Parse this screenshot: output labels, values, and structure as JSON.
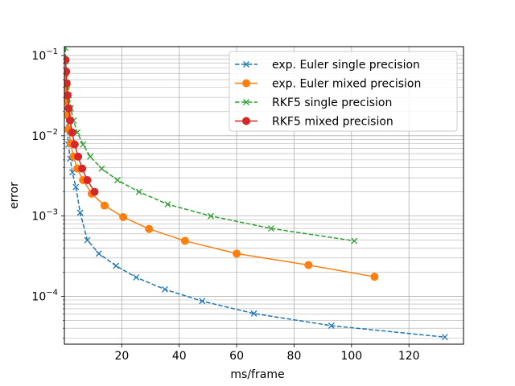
{
  "chart_data": {
    "type": "line",
    "title": "",
    "xlabel": "ms/frame",
    "ylabel": "error",
    "xscale": "linear",
    "yscale": "log",
    "xlim": [
      0,
      139
    ],
    "ylim": [
      2.53e-05,
      0.129
    ],
    "grid": true,
    "grid_minor_y": true,
    "legend_location": "upper right",
    "x_ticks": [
      20,
      40,
      60,
      80,
      100,
      120
    ],
    "x_tick_labels": [
      "20",
      "40",
      "60",
      "80",
      "100",
      "120"
    ],
    "y_ticks": [
      0.0001,
      0.001,
      0.01,
      0.1
    ],
    "y_tick_labels_base": [
      "10",
      "10",
      "10",
      "10"
    ],
    "y_tick_labels_exp": [
      "−4",
      "−3",
      "−2",
      "−1"
    ],
    "series": [
      {
        "name": "exp. Euler single precision",
        "color": "#1f77b4",
        "linestyle": "dashed",
        "marker": "x",
        "x": [
          0.2,
          0.3,
          0.5,
          0.7,
          1.0,
          1.4,
          2.0,
          2.8,
          4.0,
          5.5,
          8.0,
          12.0,
          18.0,
          25.0,
          35.0,
          48.0,
          66.0,
          93.0,
          132.5
        ],
        "y": [
          0.06,
          0.04,
          0.027,
          0.018,
          0.012,
          0.0078,
          0.0052,
          0.0035,
          0.0023,
          0.0011,
          0.0005,
          0.00034,
          0.00024,
          0.000172,
          0.000122,
          8.7e-05,
          6.1e-05,
          4.3e-05,
          3.1e-05
        ]
      },
      {
        "name": "exp. Euler mixed precision",
        "color": "#ff7f0e",
        "linestyle": "solid",
        "marker": "o",
        "x": [
          0.3,
          0.5,
          0.7,
          1.0,
          1.5,
          2.2,
          3.2,
          4.5,
          6.5,
          9.5,
          14.0,
          20.5,
          29.5,
          42.0,
          60.0,
          85.0,
          108.0
        ],
        "y": [
          0.06,
          0.04,
          0.027,
          0.018,
          0.012,
          0.008,
          0.0055,
          0.0039,
          0.0028,
          0.0019,
          0.00135,
          0.00097,
          0.00069,
          0.00049,
          0.00034,
          0.000245,
          0.000175
        ]
      },
      {
        "name": "RKF5 single precision",
        "color": "#2ca02c",
        "linestyle": "dashed",
        "marker": "x",
        "x": [
          0.3,
          0.5,
          0.7,
          1.0,
          1.5,
          2.2,
          3.2,
          4.5,
          6.5,
          9.0,
          13.0,
          18.5,
          26.0,
          36.0,
          51.0,
          72.0,
          101.0
        ],
        "y": [
          0.125,
          0.085,
          0.063,
          0.045,
          0.032,
          0.022,
          0.0155,
          0.011,
          0.0078,
          0.0055,
          0.0039,
          0.0028,
          0.002,
          0.0014,
          0.001,
          0.0007,
          0.00049
        ]
      },
      {
        "name": "RKF5 mixed precision",
        "color": "#d62728",
        "linestyle": "solid",
        "marker": "o",
        "x": [
          0.4,
          0.6,
          0.8,
          1.1,
          1.5,
          2.0,
          2.7,
          3.6,
          4.8,
          6.2,
          8.0,
          10.5
        ],
        "y": [
          0.088,
          0.063,
          0.045,
          0.032,
          0.022,
          0.0155,
          0.011,
          0.0078,
          0.0055,
          0.0039,
          0.0028,
          0.002
        ]
      }
    ]
  }
}
